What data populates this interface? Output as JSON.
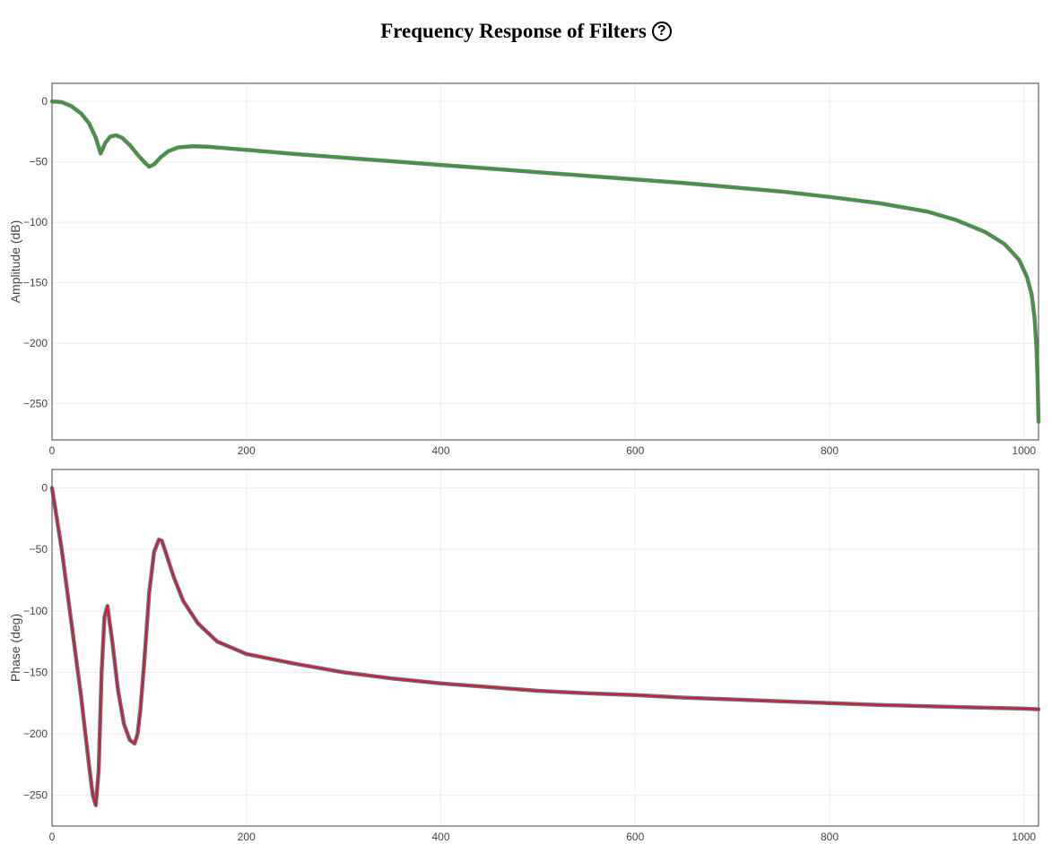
{
  "header": {
    "title": "Frequency Response of Filters",
    "help_symbol": "?"
  },
  "colors": {
    "amplitude_line": "#3a9a32",
    "amplitude_shadow": "#4d6e55",
    "phase_line": "#d01a37",
    "phase_shadow": "#555b66",
    "grid": "#eeeeee",
    "axis": "#444444",
    "tick_text": "#444444"
  },
  "chart_data": [
    {
      "type": "line",
      "title": "",
      "xlabel": "",
      "ylabel": "Amplitude (dB)",
      "xlim": [
        0,
        1015
      ],
      "ylim": [
        -280,
        15
      ],
      "xticks": [
        0,
        200,
        400,
        600,
        800,
        1000
      ],
      "yticks": [
        0,
        -50,
        -100,
        -150,
        -200,
        -250
      ],
      "xtick_labels": [
        "0",
        "200",
        "400",
        "600",
        "800",
        "1000"
      ],
      "ytick_labels": [
        "0",
        "−50",
        "−100",
        "−150",
        "−200",
        "−250"
      ],
      "grid": true,
      "series": [
        {
          "x": [
            0,
            10,
            20,
            30,
            38,
            45,
            50,
            55,
            60,
            66,
            72,
            80,
            88,
            96,
            100,
            105,
            112,
            120,
            130,
            145,
            160,
            200,
            250,
            300,
            350,
            400,
            450,
            500,
            550,
            600,
            650,
            700,
            750,
            800,
            850,
            900,
            930,
            960,
            980,
            995,
            1003,
            1008,
            1011,
            1013,
            1014,
            1015
          ],
          "y": [
            0,
            -0.5,
            -4,
            -10,
            -18,
            -30,
            -43,
            -34,
            -29,
            -28,
            -30,
            -36,
            -44,
            -51,
            -54,
            -52,
            -46,
            -41,
            -38,
            -37,
            -37.5,
            -40,
            -43.5,
            -46.5,
            -49.5,
            -52.5,
            -55.5,
            -58.5,
            -61.5,
            -64.5,
            -67.5,
            -71,
            -74.5,
            -79,
            -84,
            -91,
            -98,
            -108,
            -118,
            -131,
            -145,
            -160,
            -180,
            -205,
            -230,
            -265
          ]
        }
      ]
    },
    {
      "type": "line",
      "title": "",
      "xlabel": "",
      "ylabel": "Phase (deg)",
      "xlim": [
        0,
        1015
      ],
      "ylim": [
        -275,
        15
      ],
      "xticks": [
        0,
        200,
        400,
        600,
        800,
        1000
      ],
      "yticks": [
        0,
        -50,
        -100,
        -150,
        -200,
        -250
      ],
      "xtick_labels": [
        "0",
        "200",
        "400",
        "600",
        "800",
        "1000"
      ],
      "ytick_labels": [
        "0",
        "−50",
        "−100",
        "−150",
        "−200",
        "−250"
      ],
      "grid": true,
      "series": [
        {
          "x": [
            0,
            10,
            20,
            30,
            38,
            42,
            45,
            48,
            51,
            54,
            57,
            62,
            68,
            74,
            80,
            85,
            88,
            91,
            95,
            100,
            105,
            110,
            113,
            118,
            125,
            135,
            150,
            170,
            200,
            250,
            300,
            350,
            400,
            450,
            500,
            550,
            600,
            650,
            700,
            750,
            800,
            850,
            900,
            950,
            1000,
            1015
          ],
          "y": [
            0,
            -50,
            -110,
            -170,
            -225,
            -250,
            -258,
            -230,
            -150,
            -105,
            -96,
            -125,
            -165,
            -192,
            -205,
            -208,
            -200,
            -180,
            -140,
            -85,
            -52,
            -42,
            -43,
            -55,
            -72,
            -92,
            -110,
            -125,
            -135,
            -143,
            -150,
            -155,
            -159,
            -162,
            -165,
            -167,
            -168.5,
            -170.5,
            -172,
            -173.5,
            -175,
            -176.5,
            -177.5,
            -178.5,
            -179.5,
            -180
          ]
        }
      ]
    }
  ]
}
